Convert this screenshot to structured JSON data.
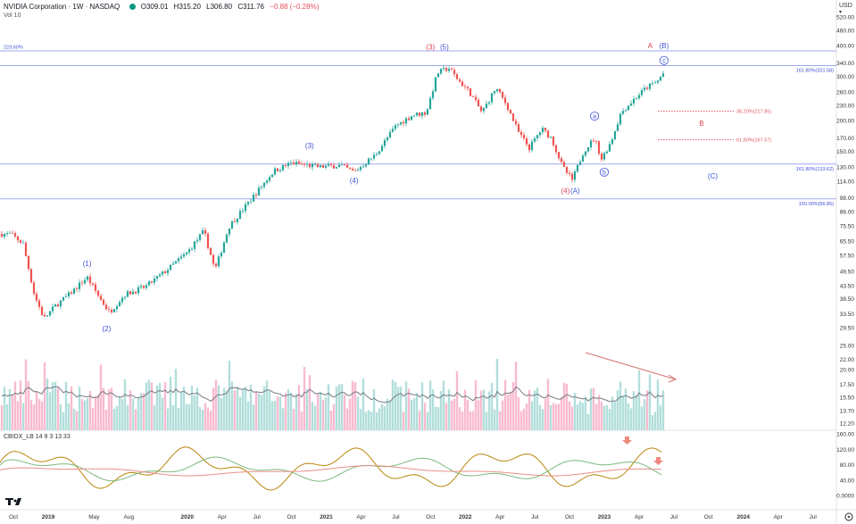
{
  "header": {
    "symbol": "NVIDIA Corporation · 1W · NASDAQ",
    "open": "O309.01",
    "high": "H315.20",
    "low": "L306.80",
    "close": "C311.76",
    "change": "−0.88 (−0.28%)",
    "volume_label": "Vol  10",
    "currency": "USD",
    "indicator_label": "CBIDX_LB 14 9 3 13 33"
  },
  "colors": {
    "up": "#26a69a",
    "down": "#ef5350",
    "vol_up": "#b2dfdb",
    "vol_down": "#f8bbd0",
    "wave_blue": "#3f51d9",
    "wave_red": "#d9434c",
    "hline": "#9fa8f0",
    "fib_red": "#e05a64"
  },
  "chart_data": {
    "type": "candlestick",
    "y_scale": "log",
    "y_ticks": [
      {
        "label": "520.00",
        "v": 520
      },
      {
        "label": "460.00",
        "v": 460
      },
      {
        "label": "400.00",
        "v": 400
      },
      {
        "label": "340.00",
        "v": 340
      },
      {
        "label": "300.00",
        "v": 300
      },
      {
        "label": "260.00",
        "v": 260
      },
      {
        "label": "230.00",
        "v": 230
      },
      {
        "label": "200.00",
        "v": 200
      },
      {
        "label": "170.00",
        "v": 170
      },
      {
        "label": "150.00",
        "v": 150
      },
      {
        "label": "130.00",
        "v": 130
      },
      {
        "label": "114.00",
        "v": 114
      },
      {
        "label": "98.00",
        "v": 98
      },
      {
        "label": "86.00",
        "v": 86
      },
      {
        "label": "75.50",
        "v": 75.5
      },
      {
        "label": "65.50",
        "v": 65.5
      },
      {
        "label": "57.50",
        "v": 57.5
      },
      {
        "label": "49.50",
        "v": 49.5
      },
      {
        "label": "43.50",
        "v": 43.5
      },
      {
        "label": "38.50",
        "v": 38.5
      },
      {
        "label": "33.50",
        "v": 33.5
      },
      {
        "label": "29.50",
        "v": 29.5
      },
      {
        "label": "25.00",
        "v": 25
      },
      {
        "label": "22.00",
        "v": 22
      },
      {
        "label": "20.00",
        "v": 20
      },
      {
        "label": "17.50",
        "v": 17.5
      },
      {
        "label": "15.50",
        "v": 15.5
      },
      {
        "label": "13.70",
        "v": 13.7
      },
      {
        "label": "12.20",
        "v": 12.2
      }
    ],
    "osc_ticks": [
      {
        "label": "160.00",
        "v": 160
      },
      {
        "label": "120.00",
        "v": 120
      },
      {
        "label": "80.00",
        "v": 80
      },
      {
        "label": "40.00",
        "v": 40
      },
      {
        "label": "0.0000",
        "v": 0
      }
    ],
    "x_ticks": [
      {
        "label": "Oct",
        "t": 2018.75
      },
      {
        "label": "2019",
        "t": 2019.0
      },
      {
        "label": "May",
        "t": 2019.33
      },
      {
        "label": "Aug",
        "t": 2019.58
      },
      {
        "label": "2020",
        "t": 2020.0
      },
      {
        "label": "Apr",
        "t": 2020.25
      },
      {
        "label": "Jul",
        "t": 2020.5
      },
      {
        "label": "Oct",
        "t": 2020.75
      },
      {
        "label": "2021",
        "t": 2021.0
      },
      {
        "label": "Apr",
        "t": 2021.25
      },
      {
        "label": "Jul",
        "t": 2021.5
      },
      {
        "label": "Oct",
        "t": 2021.75
      },
      {
        "label": "2022",
        "t": 2022.0
      },
      {
        "label": "Apr",
        "t": 2022.25
      },
      {
        "label": "Jul",
        "t": 2022.5
      },
      {
        "label": "Oct",
        "t": 2022.75
      },
      {
        "label": "2023",
        "t": 2023.0
      },
      {
        "label": "Apr",
        "t": 2023.25
      },
      {
        "label": "Jul",
        "t": 2023.5
      },
      {
        "label": "Oct",
        "t": 2023.75
      },
      {
        "label": "2024",
        "t": 2024.0
      },
      {
        "label": "Apr",
        "t": 2024.25
      },
      {
        "label": "Jul",
        "t": 2024.5
      }
    ],
    "price_path": [
      {
        "t": 2018.73,
        "v": 70
      },
      {
        "t": 2018.82,
        "v": 64
      },
      {
        "t": 2018.9,
        "v": 40
      },
      {
        "t": 2018.97,
        "v": 32
      },
      {
        "t": 2019.05,
        "v": 36
      },
      {
        "t": 2019.15,
        "v": 40
      },
      {
        "t": 2019.28,
        "v": 47
      },
      {
        "t": 2019.38,
        "v": 38
      },
      {
        "t": 2019.44,
        "v": 34
      },
      {
        "t": 2019.55,
        "v": 40
      },
      {
        "t": 2019.7,
        "v": 43
      },
      {
        "t": 2019.85,
        "v": 50
      },
      {
        "t": 2020.0,
        "v": 59
      },
      {
        "t": 2020.12,
        "v": 72
      },
      {
        "t": 2020.2,
        "v": 50
      },
      {
        "t": 2020.3,
        "v": 75
      },
      {
        "t": 2020.45,
        "v": 95
      },
      {
        "t": 2020.62,
        "v": 125
      },
      {
        "t": 2020.75,
        "v": 135
      },
      {
        "t": 2020.95,
        "v": 130
      },
      {
        "t": 2021.1,
        "v": 132
      },
      {
        "t": 2021.2,
        "v": 124
      },
      {
        "t": 2021.35,
        "v": 145
      },
      {
        "t": 2021.5,
        "v": 190
      },
      {
        "t": 2021.62,
        "v": 210
      },
      {
        "t": 2021.72,
        "v": 215
      },
      {
        "t": 2021.8,
        "v": 310
      },
      {
        "t": 2021.88,
        "v": 325
      },
      {
        "t": 2021.95,
        "v": 290
      },
      {
        "t": 2022.03,
        "v": 260
      },
      {
        "t": 2022.12,
        "v": 215
      },
      {
        "t": 2022.22,
        "v": 270
      },
      {
        "t": 2022.3,
        "v": 230
      },
      {
        "t": 2022.38,
        "v": 180
      },
      {
        "t": 2022.46,
        "v": 155
      },
      {
        "t": 2022.55,
        "v": 185
      },
      {
        "t": 2022.62,
        "v": 170
      },
      {
        "t": 2022.7,
        "v": 130
      },
      {
        "t": 2022.77,
        "v": 115
      },
      {
        "t": 2022.85,
        "v": 150
      },
      {
        "t": 2022.93,
        "v": 170
      },
      {
        "t": 2022.98,
        "v": 140
      },
      {
        "t": 2023.05,
        "v": 165
      },
      {
        "t": 2023.12,
        "v": 215
      },
      {
        "t": 2023.22,
        "v": 245
      },
      {
        "t": 2023.3,
        "v": 270
      },
      {
        "t": 2023.38,
        "v": 286
      },
      {
        "t": 2023.43,
        "v": 312
      }
    ],
    "volume_avg_range": [
      13.5,
      19.5
    ],
    "horizontal_levels": [
      {
        "label": "223.60%",
        "v": 380,
        "side": "left"
      },
      {
        "label": "161.80%(331.58)",
        "v": 331.58,
        "side": "right"
      },
      {
        "label": "161.80%(133.62)",
        "v": 133.62,
        "side": "right"
      },
      {
        "label": "150.00%(96.86)",
        "v": 96.86,
        "side": "right"
      }
    ],
    "fib_retracements": [
      {
        "label": "38.20%(217.85)",
        "v": 217.85
      },
      {
        "label": "61.80%(167.57)",
        "v": 167.57
      }
    ],
    "wave_labels": [
      {
        "text": "(1)",
        "t": 2019.28,
        "v": 52,
        "color": "blue"
      },
      {
        "text": "(2)",
        "t": 2019.42,
        "v": 28.5,
        "color": "blue"
      },
      {
        "text": "(3)",
        "t": 2020.88,
        "v": 155,
        "color": "blue"
      },
      {
        "text": "(4)",
        "t": 2021.2,
        "v": 112,
        "color": "blue"
      },
      {
        "text": "(3)",
        "t": 2021.75,
        "v": 385,
        "color": "red"
      },
      {
        "text": "(5)",
        "t": 2021.85,
        "v": 385,
        "color": "blue"
      },
      {
        "text": "(4)",
        "t": 2022.72,
        "v": 102,
        "color": "red"
      },
      {
        "text": "(A)",
        "t": 2022.79,
        "v": 102,
        "color": "blue"
      },
      {
        "text": "A",
        "t": 2023.33,
        "v": 390,
        "color": "red"
      },
      {
        "text": "(B)",
        "t": 2023.43,
        "v": 390,
        "color": "blue"
      },
      {
        "text": "B",
        "t": 2023.7,
        "v": 190,
        "color": "red"
      },
      {
        "text": "(C)",
        "t": 2023.78,
        "v": 117,
        "color": "blue"
      }
    ],
    "circle_labels": [
      {
        "text": "a",
        "t": 2022.93,
        "v": 208
      },
      {
        "text": "b",
        "t": 2023.0,
        "v": 124
      },
      {
        "text": "c",
        "t": 2023.43,
        "v": 348
      }
    ]
  }
}
